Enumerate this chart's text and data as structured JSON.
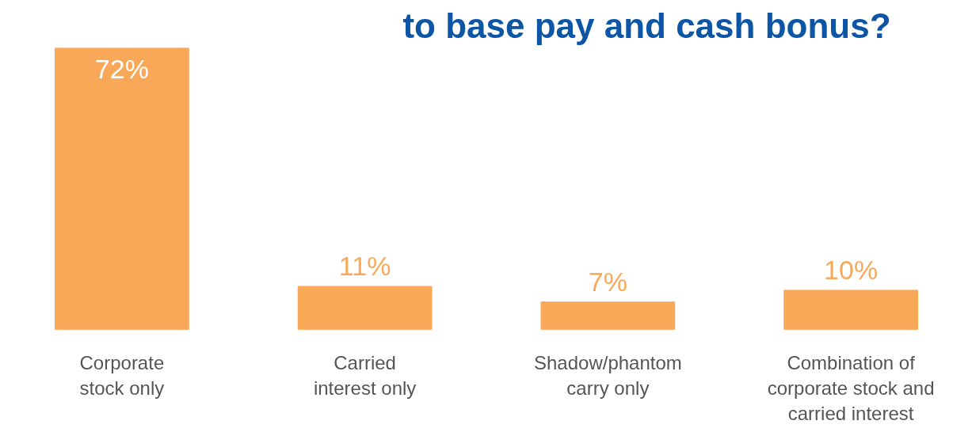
{
  "chart_data": {
    "type": "bar",
    "title": "to base pay and cash bonus?",
    "categories": [
      "Corporate\nstock only",
      "Carried\ninterest only",
      "Shadow/phantom\ncarry only",
      "Combination of\ncorporate stock and\ncarried interest"
    ],
    "values": [
      72,
      11,
      7,
      10
    ],
    "value_labels": [
      "72%",
      "11%",
      "7%",
      "10%"
    ],
    "color": "#f9a857",
    "grid": false
  }
}
